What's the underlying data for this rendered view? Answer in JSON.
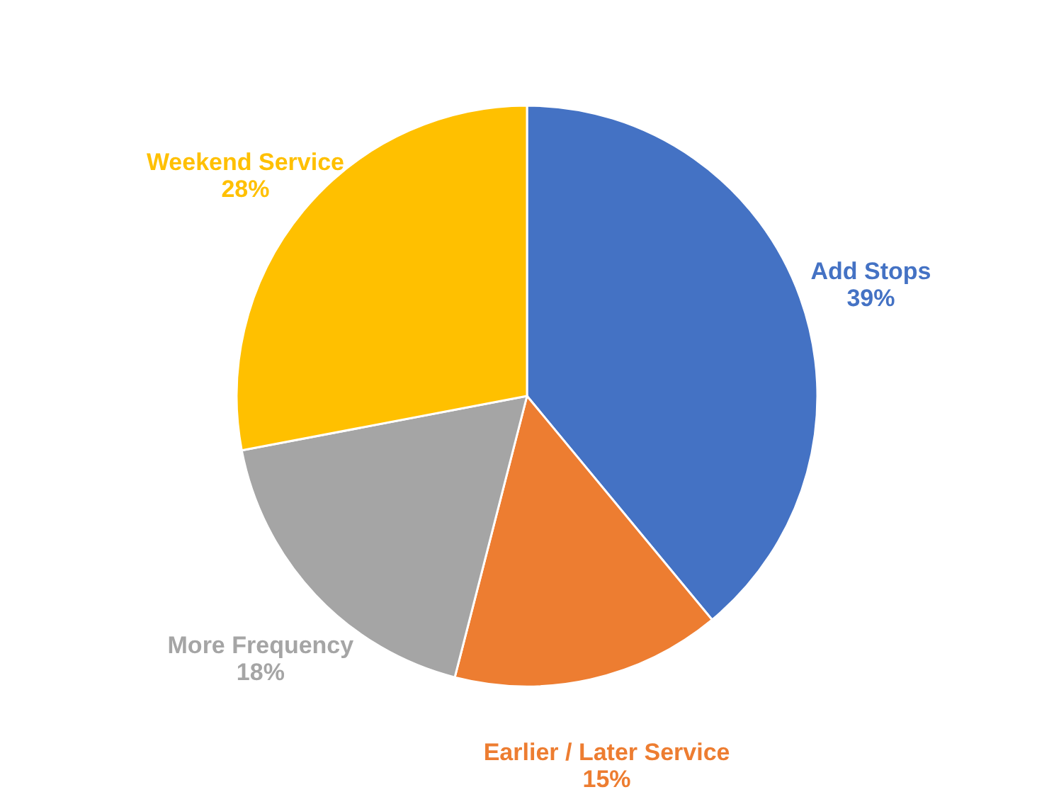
{
  "chart_data": {
    "type": "pie",
    "categories": [
      "Add Stops",
      "Earlier / Later Service",
      "More Frequency",
      "Weekend Service"
    ],
    "values": [
      39,
      15,
      18,
      28
    ],
    "colors": [
      "#4472c4",
      "#ed7d31",
      "#a5a5a5",
      "#ffc000"
    ],
    "value_labels": [
      "39%",
      "15%",
      "18%",
      "28%"
    ]
  }
}
